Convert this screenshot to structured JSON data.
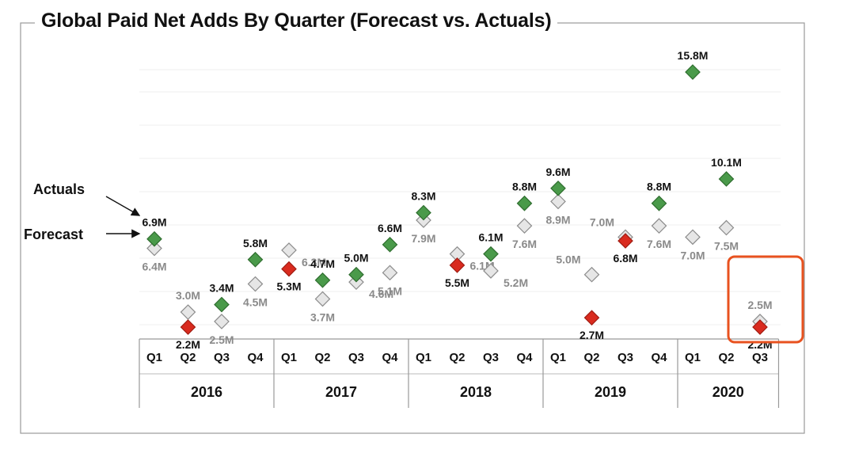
{
  "title": "Global Paid Net Adds By Quarter (Forecast vs. Actuals)",
  "legend": {
    "actuals_label": "Actuals",
    "forecast_label": "Forecast",
    "actuals_color": "#4a9a4a",
    "forecast_color": "#d9d9d9"
  },
  "colors": {
    "beat": "#4a9a4a",
    "miss": "#d92b1f",
    "forecast": "#e6e6e6",
    "actual_text": "#111111",
    "forecast_text": "#8a8a8a",
    "highlight": "#e8521f"
  },
  "chart_data": {
    "type": "scatter",
    "units": "M",
    "ylim": [
      0,
      18
    ],
    "grid": true,
    "legend_placement": "left",
    "years": [
      "2016",
      "2017",
      "2018",
      "2019",
      "2020"
    ],
    "categories": [
      {
        "year": "2016",
        "quarter": "Q1"
      },
      {
        "year": "2016",
        "quarter": "Q2"
      },
      {
        "year": "2016",
        "quarter": "Q3"
      },
      {
        "year": "2016",
        "quarter": "Q4"
      },
      {
        "year": "2017",
        "quarter": "Q1"
      },
      {
        "year": "2017",
        "quarter": "Q2"
      },
      {
        "year": "2017",
        "quarter": "Q3"
      },
      {
        "year": "2017",
        "quarter": "Q4"
      },
      {
        "year": "2018",
        "quarter": "Q1"
      },
      {
        "year": "2018",
        "quarter": "Q2"
      },
      {
        "year": "2018",
        "quarter": "Q3"
      },
      {
        "year": "2018",
        "quarter": "Q4"
      },
      {
        "year": "2019",
        "quarter": "Q1"
      },
      {
        "year": "2019",
        "quarter": "Q2"
      },
      {
        "year": "2019",
        "quarter": "Q3"
      },
      {
        "year": "2019",
        "quarter": "Q4"
      },
      {
        "year": "2020",
        "quarter": "Q1"
      },
      {
        "year": "2020",
        "quarter": "Q2"
      },
      {
        "year": "2020",
        "quarter": "Q3"
      }
    ],
    "series": [
      {
        "name": "Actuals",
        "values": [
          6.9,
          2.2,
          3.4,
          5.8,
          5.3,
          4.7,
          5.0,
          6.6,
          8.3,
          5.5,
          6.1,
          8.8,
          9.6,
          2.7,
          6.8,
          8.8,
          15.8,
          10.1,
          2.2
        ],
        "labels": [
          "6.9M",
          "2.2M",
          "3.4M",
          "5.8M",
          "5.3M",
          "4.7M",
          "5.0M",
          "6.6M",
          "8.3M",
          "5.5M",
          "6.1M",
          "8.8M",
          "9.6M",
          "2.7M",
          "6.8M",
          "8.8M",
          "15.8M",
          "10.1M",
          "2.2M"
        ]
      },
      {
        "name": "Forecast",
        "values": [
          6.4,
          3.0,
          2.5,
          4.5,
          6.3,
          3.7,
          4.6,
          5.1,
          7.9,
          6.1,
          5.2,
          7.6,
          8.9,
          5.0,
          7.0,
          7.6,
          7.0,
          7.5,
          2.5
        ],
        "labels": [
          "6.4M",
          "3.0M",
          "2.5M",
          "4.5M",
          "6.3M",
          "3.7M",
          "4.6M",
          "5.1M",
          "7.9M",
          "6.1M",
          "5.2M",
          "7.6M",
          "8.9M",
          "5.0M",
          "7.0M",
          "7.6M",
          "7.0M",
          "7.5M",
          "2.5M"
        ]
      }
    ],
    "highlight": {
      "year": "2020",
      "quarter": "Q3"
    }
  }
}
